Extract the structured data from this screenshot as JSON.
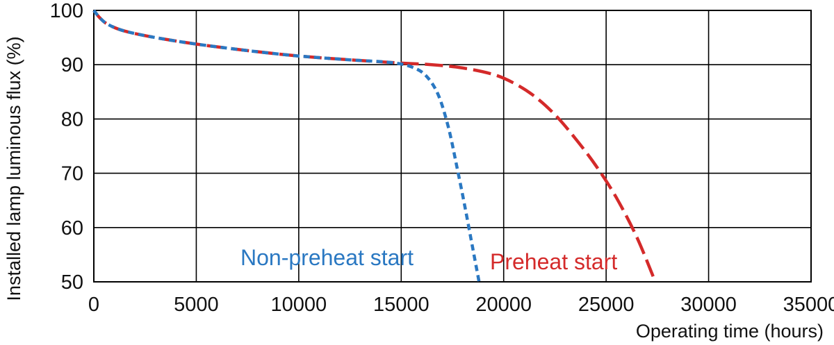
{
  "chart_data": {
    "type": "line",
    "title": "",
    "xlabel": "Operating time (hours)",
    "ylabel": "Installed lamp luminous flux  (%)",
    "xlim": [
      0,
      35000
    ],
    "ylim": [
      50,
      100
    ],
    "x_ticks": [
      "0",
      "5000",
      "10000",
      "15000",
      "20000",
      "25000",
      "30000",
      "35000"
    ],
    "y_ticks": [
      "100",
      "90",
      "80",
      "70",
      "60",
      "50"
    ],
    "grid": true,
    "series": [
      {
        "name": "Preheat start",
        "color": "#d42a2a",
        "dash": "long-dash",
        "x": [
          0,
          300,
          700,
          1500,
          3000,
          5000,
          7500,
          10000,
          12500,
          15000,
          16500,
          18000,
          19500,
          20500,
          21500,
          22500,
          23500,
          24500,
          25500,
          26500,
          27400
        ],
        "y": [
          100,
          98.6,
          97.4,
          96.2,
          95.0,
          93.8,
          92.6,
          91.6,
          90.9,
          90.3,
          90.0,
          89.4,
          88.2,
          86.6,
          84.2,
          80.8,
          76.4,
          71.4,
          65.5,
          58.2,
          50
        ]
      },
      {
        "name": "Non-preheat start",
        "color": "#2a78c2",
        "dash": "short-dash",
        "x": [
          0,
          300,
          700,
          1500,
          3000,
          5000,
          7500,
          10000,
          12500,
          14500,
          15500,
          16200,
          16800,
          17300,
          17700,
          18100,
          18500,
          18800
        ],
        "y": [
          100,
          98.6,
          97.4,
          96.2,
          95.0,
          93.8,
          92.6,
          91.6,
          90.9,
          90.4,
          89.6,
          88.0,
          84.5,
          78.5,
          71.5,
          64.0,
          56.0,
          50
        ]
      }
    ],
    "annotations": [
      {
        "text": "Non-preheat start",
        "series": "Non-preheat start"
      },
      {
        "text": "Preheat start",
        "series": "Preheat start"
      }
    ]
  }
}
